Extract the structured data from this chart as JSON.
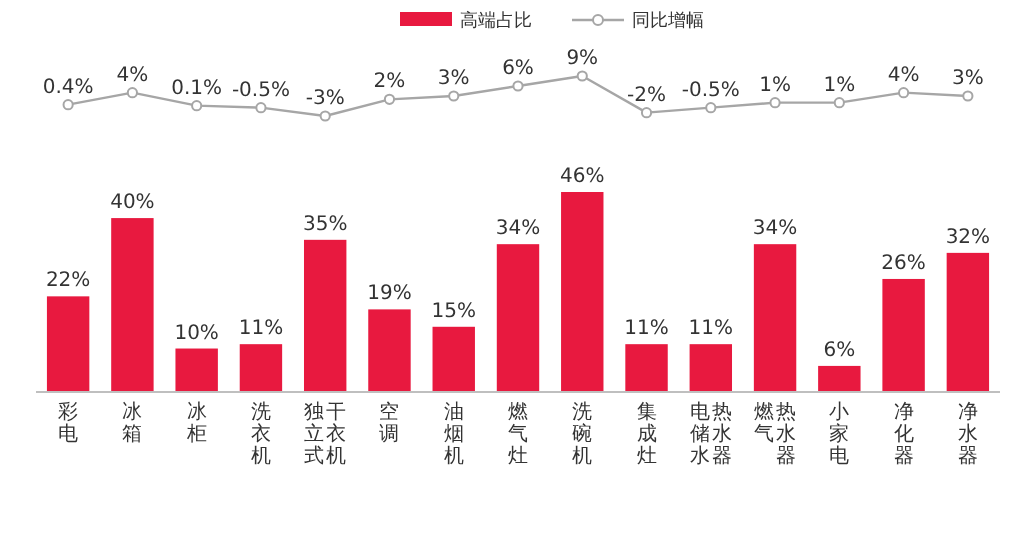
{
  "chart_data": [
    {
      "type": "line",
      "categories": [
        null,
        null,
        null,
        null,
        null,
        null,
        null,
        null,
        null,
        null,
        null,
        null,
        null,
        null,
        null
      ],
      "legend": "top",
      "marker": "circle",
      "series": [
        {
          "name": "同比增幅",
          "color": "#a6a6a6",
          "values": [
            0.4,
            4,
            0.1,
            -0.5,
            -3,
            2,
            3,
            6,
            9,
            -2,
            -0.5,
            1,
            1,
            4,
            3
          ],
          "value_labels": [
            "0.4%",
            "4%",
            "0.1%",
            "-0.5%",
            "-3%",
            "2%",
            "3%",
            "6%",
            "9%",
            "-2%",
            "-0.5%",
            "1%",
            "1%",
            "4%",
            "3%"
          ]
        }
      ]
    },
    {
      "type": "bar",
      "categories": [
        "彩电",
        "冰箱",
        "冰柜",
        "洗衣机",
        "独立式干衣机",
        "空调",
        "油烟机",
        "燃气灶",
        "洗碗机",
        "集成灶",
        "电储水热水器",
        "燃气热水器",
        "小家电",
        "净化器",
        "净水器"
      ],
      "legend": "top",
      "series": [
        {
          "name": "高端占比",
          "color": "#e8193f",
          "values": [
            22,
            40,
            10,
            11,
            35,
            19,
            15,
            34,
            46,
            11,
            11,
            34,
            6,
            26,
            32
          ],
          "value_labels": [
            "22%",
            "40%",
            "10%",
            "11%",
            "35%",
            "19%",
            "15%",
            "34%",
            "46%",
            "11%",
            "11%",
            "34%",
            "6%",
            "26%",
            "32%"
          ]
        }
      ]
    }
  ]
}
